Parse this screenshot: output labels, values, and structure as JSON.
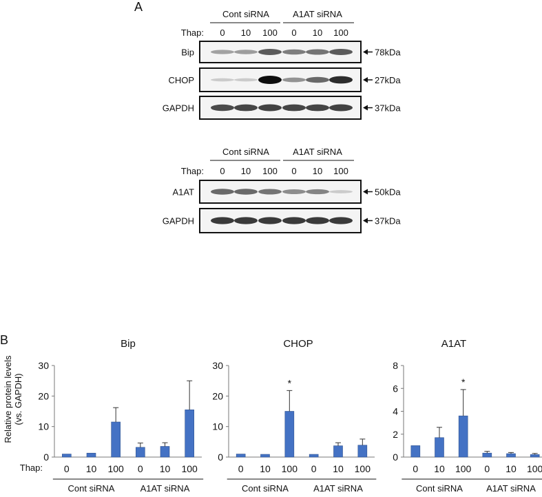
{
  "panel_a": {
    "label": "A",
    "thap_label": "Thap:",
    "groups": [
      "Cont siRNA",
      "A1AT siRNA"
    ],
    "doses": [
      "0",
      "10",
      "100",
      "0",
      "10",
      "100"
    ],
    "blot_set_1": [
      {
        "protein": "Bip",
        "marker": "78kDa",
        "intensities": [
          0.28,
          0.3,
          0.62,
          0.45,
          0.5,
          0.62
        ]
      },
      {
        "protein": "CHOP",
        "marker": "27kDa",
        "intensities": [
          0.08,
          0.08,
          1.0,
          0.35,
          0.55,
          0.85
        ]
      },
      {
        "protein": "GAPDH",
        "marker": "37kDa",
        "intensities": [
          0.7,
          0.72,
          0.74,
          0.72,
          0.73,
          0.74
        ]
      }
    ],
    "blot_set_2": [
      {
        "protein": "A1AT",
        "marker": "50kDa",
        "intensities": [
          0.55,
          0.55,
          0.5,
          0.38,
          0.42,
          0.08
        ]
      },
      {
        "protein": "GAPDH",
        "marker": "37kDa",
        "intensities": [
          0.78,
          0.78,
          0.78,
          0.78,
          0.78,
          0.78
        ]
      }
    ]
  },
  "panel_b": {
    "label": "B",
    "thap_label": "Thap:",
    "ylabel_line1": "Relative protein levels",
    "ylabel_line2": "(vs. GAPDH)",
    "bar_color": "#4472C4"
  },
  "chart_data": [
    {
      "type": "bar",
      "title": "Bip",
      "categories": [
        "0",
        "10",
        "100",
        "0",
        "10",
        "100"
      ],
      "groups": [
        "Cont siRNA",
        "A1AT siRNA"
      ],
      "values": [
        1.0,
        1.3,
        11.5,
        3.2,
        3.5,
        15.5
      ],
      "errors": [
        0,
        0,
        4.7,
        1.4,
        1.2,
        9.5
      ],
      "significance": [
        "",
        "",
        "",
        "",
        "",
        ""
      ],
      "ylim": [
        0,
        30
      ],
      "yticks": [
        0,
        10,
        20,
        30
      ]
    },
    {
      "type": "bar",
      "title": "CHOP",
      "categories": [
        "0",
        "10",
        "100",
        "0",
        "10",
        "100"
      ],
      "groups": [
        "Cont siRNA",
        "A1AT siRNA"
      ],
      "values": [
        1.0,
        0.9,
        15.0,
        0.9,
        3.7,
        3.9
      ],
      "errors": [
        0,
        0,
        6.8,
        0,
        1.0,
        2.0
      ],
      "significance": [
        "",
        "",
        "*",
        "",
        "",
        ""
      ],
      "ylim": [
        0,
        30
      ],
      "yticks": [
        0,
        10,
        20,
        30
      ]
    },
    {
      "type": "bar",
      "title": "A1AT",
      "categories": [
        "0",
        "10",
        "100",
        "0",
        "10",
        "100"
      ],
      "groups": [
        "Cont siRNA",
        "A1AT siRNA"
      ],
      "values": [
        1.0,
        1.7,
        3.6,
        0.35,
        0.3,
        0.22
      ],
      "errors": [
        0,
        0.9,
        2.3,
        0.15,
        0.1,
        0.1
      ],
      "significance": [
        "",
        "",
        "*",
        "",
        "",
        ""
      ],
      "ylim": [
        0,
        8
      ],
      "yticks": [
        0,
        2,
        4,
        6,
        8
      ]
    }
  ]
}
